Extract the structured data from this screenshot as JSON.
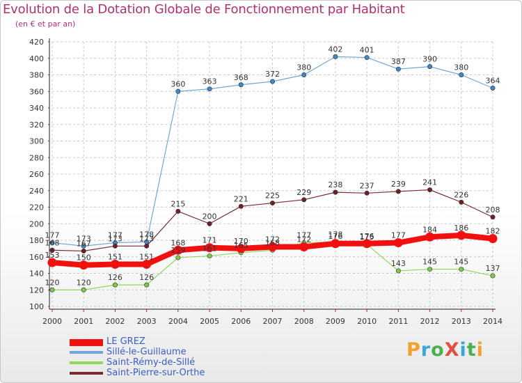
{
  "title": "Evolution de la Dotation Globale de Fonctionnement par Habitant",
  "subtitle": "(en € et par an)",
  "logo": {
    "text": "ProXiti",
    "colors": [
      "#f0a22e",
      "#3da4d8",
      "#4caf50",
      "#e14d3e",
      "#3da4d8",
      "#4caf50",
      "#f0a22e"
    ]
  },
  "chart_data": {
    "type": "line",
    "title": "Evolution de la Dotation Globale de Fonctionnement par Habitant",
    "ylabel": "(en € et par an)",
    "xlabel": "",
    "ylim": [
      100,
      420
    ],
    "yticks": [
      "100",
      "120",
      "140",
      "160",
      "180",
      "200",
      "220",
      "240",
      "260",
      "280",
      "300",
      "320",
      "340",
      "360",
      "380",
      "400",
      "420"
    ],
    "categories": [
      "2000",
      "2001",
      "2002",
      "2003",
      "2004",
      "2005",
      "2006",
      "2007",
      "2008",
      "2009",
      "2010",
      "2011",
      "2012",
      "2013",
      "2014"
    ],
    "grid": true,
    "legend_position": "bottom-left",
    "series": [
      {
        "name": "Sillé-le-Guillaume",
        "color": "#6fa6d8",
        "marker": "#3f88c5",
        "width": 1.2,
        "values": [
          177,
          173,
          177,
          178,
          360,
          363,
          368,
          372,
          380,
          402,
          401,
          387,
          390,
          380,
          364
        ]
      },
      {
        "name": "Saint-Pierre-sur-Orthe",
        "color": "#7a2a32",
        "marker": "#6e1f27",
        "width": 1.2,
        "values": [
          168,
          167,
          173,
          173,
          215,
          200,
          221,
          225,
          229,
          238,
          237,
          239,
          241,
          226,
          208
        ]
      },
      {
        "name": "Saint-Rémy-de-Sillé",
        "color": "#8fd65a",
        "marker": "#7ec84a",
        "width": 1.2,
        "values": [
          120,
          120,
          126,
          126,
          159,
          161,
          165,
          168,
          177,
          178,
          175,
          143,
          145,
          145,
          137
        ]
      },
      {
        "name": "LE GREZ",
        "color": "#f01010",
        "marker": "#f01010",
        "width": 8,
        "values": [
          153,
          150,
          151,
          151,
          168,
          171,
          170,
          172,
          172,
          176,
          176,
          177,
          184,
          186,
          182
        ]
      }
    ],
    "legend_order": [
      "LE GREZ",
      "Sillé-le-Guillaume",
      "Saint-Rémy-de-Sillé",
      "Saint-Pierre-sur-Orthe"
    ]
  }
}
